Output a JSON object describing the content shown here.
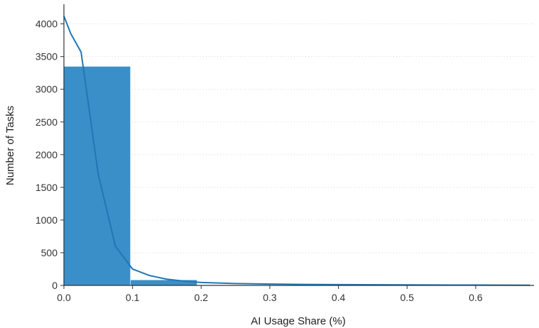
{
  "chart_data": {
    "type": "bar",
    "title": "",
    "xlabel": "AI Usage Share (%)",
    "ylabel": "Number of Tasks",
    "xlim": [
      0,
      0.685
    ],
    "ylim": [
      0,
      4300
    ],
    "x_ticks": [
      0.0,
      0.1,
      0.2,
      0.3,
      0.4,
      0.5,
      0.6
    ],
    "x_tick_labels": [
      "0.0",
      "0.1",
      "0.2",
      "0.3",
      "0.4",
      "0.5",
      "0.6"
    ],
    "y_ticks": [
      0,
      500,
      1000,
      1500,
      2000,
      2500,
      3000,
      3500,
      4000
    ],
    "y_tick_labels": [
      "0",
      "500",
      "1000",
      "1500",
      "2000",
      "2500",
      "3000",
      "3500",
      "4000"
    ],
    "grid": "horizontal, dotted",
    "bars": [
      {
        "x0": 0.0,
        "x1": 0.097,
        "value": 3350
      },
      {
        "x0": 0.097,
        "x1": 0.194,
        "value": 85
      },
      {
        "x0": 0.194,
        "x1": 0.291,
        "value": 8
      },
      {
        "x0": 0.291,
        "x1": 0.388,
        "value": 4
      },
      {
        "x0": 0.388,
        "x1": 0.485,
        "value": 2
      },
      {
        "x0": 0.485,
        "x1": 0.582,
        "value": 1
      },
      {
        "x0": 0.582,
        "x1": 0.679,
        "value": 1
      }
    ],
    "kde_line": {
      "x": [
        0.0,
        0.01,
        0.025,
        0.05,
        0.075,
        0.1,
        0.125,
        0.15,
        0.175,
        0.2,
        0.25,
        0.3,
        0.35,
        0.4,
        0.5,
        0.6,
        0.679
      ],
      "y": [
        4120,
        3850,
        3570,
        1700,
        600,
        250,
        150,
        95,
        65,
        45,
        28,
        20,
        15,
        12,
        8,
        5,
        3
      ]
    },
    "colors": {
      "bar": "#3a8fc8",
      "bar_edge": "#ffffff",
      "line": "#1f77b4",
      "axis": "#333333",
      "grid": "#d8d8d8"
    }
  }
}
